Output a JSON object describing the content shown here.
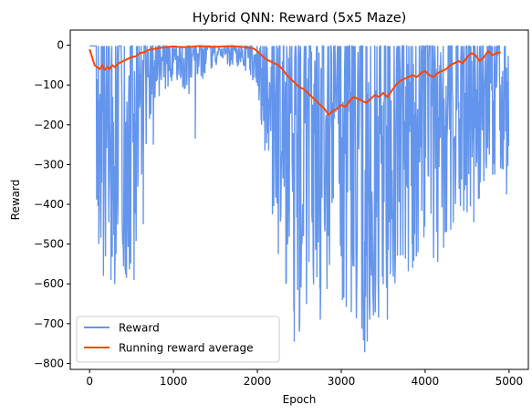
{
  "chart_data": {
    "type": "line",
    "title": "Hybrid QNN: Reward (5x5 Maze)",
    "xlabel": "Epoch",
    "ylabel": "Reward",
    "xlim": [
      -230,
      5230
    ],
    "ylim": [
      -815,
      38
    ],
    "x_ticks": [
      0,
      1000,
      2000,
      3000,
      4000,
      5000
    ],
    "y_ticks": [
      0,
      -100,
      -200,
      -300,
      -400,
      -500,
      -600,
      -700,
      -800
    ],
    "grid": false,
    "legend": {
      "placement": "lower-left"
    },
    "series": [
      {
        "name": "Reward",
        "color": "#6495ED",
        "style": "spiky-episodes",
        "x_range": [
          0,
          4999
        ],
        "baseline": -2,
        "envelope": [
          {
            "x": 100,
            "min": -480
          },
          {
            "x": 200,
            "min": -560
          },
          {
            "x": 300,
            "min": -590
          },
          {
            "x": 400,
            "min": -600
          },
          {
            "x": 500,
            "min": -590
          },
          {
            "x": 600,
            "min": -420
          },
          {
            "x": 700,
            "min": -250
          },
          {
            "x": 800,
            "min": -150
          },
          {
            "x": 1000,
            "min": -90
          },
          {
            "x": 1200,
            "min": -130
          },
          {
            "x": 1400,
            "min": -70
          },
          {
            "x": 1600,
            "min": -50
          },
          {
            "x": 1800,
            "min": -60
          },
          {
            "x": 2000,
            "min": -100
          },
          {
            "x": 2100,
            "min": -300
          },
          {
            "x": 2200,
            "min": -420
          },
          {
            "x": 2300,
            "min": -560
          },
          {
            "x": 2400,
            "min": -660
          },
          {
            "x": 2500,
            "min": -720
          },
          {
            "x": 2700,
            "min": -650
          },
          {
            "x": 3000,
            "min": -640
          },
          {
            "x": 3300,
            "min": -760
          },
          {
            "x": 3600,
            "min": -620
          },
          {
            "x": 3900,
            "min": -560
          },
          {
            "x": 4200,
            "min": -540
          },
          {
            "x": 4500,
            "min": -430
          },
          {
            "x": 4700,
            "min": -380
          },
          {
            "x": 4900,
            "min": -330
          },
          {
            "x": 5000,
            "min": -300
          }
        ],
        "notable_dips": [
          {
            "x": 110,
            "y": -500
          },
          {
            "x": 165,
            "y": -580
          },
          {
            "x": 255,
            "y": -590
          },
          {
            "x": 300,
            "y": -600
          },
          {
            "x": 430,
            "y": -575
          },
          {
            "x": 530,
            "y": -590
          },
          {
            "x": 640,
            "y": -450
          },
          {
            "x": 760,
            "y": -250
          },
          {
            "x": 1260,
            "y": -235
          },
          {
            "x": 2050,
            "y": -200
          },
          {
            "x": 2180,
            "y": -425
          },
          {
            "x": 2250,
            "y": -525
          },
          {
            "x": 2340,
            "y": -600
          },
          {
            "x": 2440,
            "y": -745
          },
          {
            "x": 2500,
            "y": -720
          },
          {
            "x": 2750,
            "y": -690
          },
          {
            "x": 3280,
            "y": -772
          },
          {
            "x": 3550,
            "y": -690
          },
          {
            "x": 3850,
            "y": -560
          },
          {
            "x": 4150,
            "y": -545
          },
          {
            "x": 4580,
            "y": -445
          },
          {
            "x": 4970,
            "y": -375
          }
        ]
      },
      {
        "name": "Running reward average",
        "color": "#FF4500",
        "x": [
          0,
          30,
          60,
          90,
          120,
          150,
          180,
          210,
          240,
          270,
          300,
          350,
          400,
          450,
          500,
          550,
          600,
          650,
          700,
          800,
          900,
          1000,
          1100,
          1200,
          1300,
          1400,
          1500,
          1600,
          1700,
          1800,
          1900,
          1950,
          2000,
          2050,
          2100,
          2150,
          2200,
          2250,
          2300,
          2350,
          2400,
          2450,
          2500,
          2550,
          2600,
          2650,
          2700,
          2750,
          2800,
          2850,
          2900,
          2950,
          3000,
          3050,
          3100,
          3150,
          3200,
          3250,
          3300,
          3350,
          3400,
          3450,
          3500,
          3550,
          3600,
          3650,
          3700,
          3750,
          3800,
          3850,
          3900,
          3950,
          4000,
          4050,
          4100,
          4150,
          4200,
          4250,
          4300,
          4350,
          4400,
          4450,
          4500,
          4550,
          4600,
          4650,
          4700,
          4750,
          4800,
          4850,
          4900
        ],
        "values": [
          -10,
          -30,
          -50,
          -55,
          -60,
          -50,
          -62,
          -55,
          -60,
          -50,
          -55,
          -45,
          -40,
          -35,
          -30,
          -28,
          -20,
          -18,
          -12,
          -8,
          -5,
          -3,
          -5,
          -4,
          -2,
          -3,
          -4,
          -3,
          -2,
          -4,
          -6,
          -8,
          -15,
          -25,
          -35,
          -40,
          -45,
          -50,
          -60,
          -75,
          -85,
          -95,
          -105,
          -110,
          -120,
          -130,
          -140,
          -150,
          -160,
          -175,
          -165,
          -160,
          -150,
          -155,
          -140,
          -130,
          -135,
          -140,
          -145,
          -135,
          -125,
          -130,
          -120,
          -130,
          -115,
          -100,
          -90,
          -85,
          -80,
          -75,
          -80,
          -70,
          -65,
          -75,
          -80,
          -70,
          -65,
          -60,
          -50,
          -45,
          -40,
          -45,
          -30,
          -20,
          -25,
          -40,
          -30,
          -15,
          -25,
          -20,
          -18
        ]
      }
    ]
  }
}
